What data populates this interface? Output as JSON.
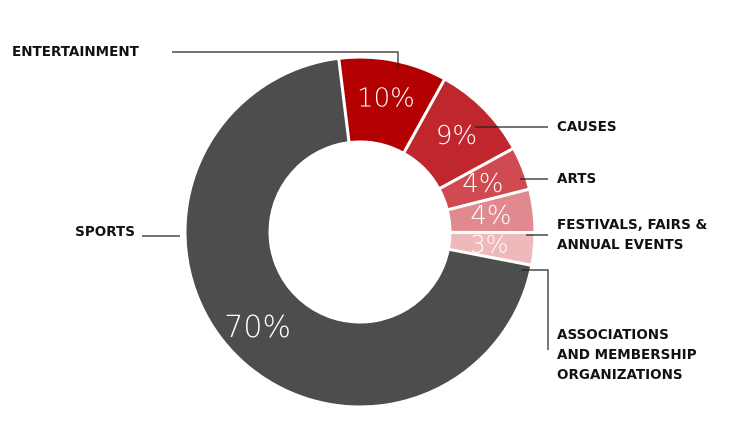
{
  "chart_data": {
    "type": "pie",
    "title": "",
    "donut": true,
    "legend": "none",
    "slices": [
      {
        "label": "ENTERTAINMENT",
        "lines": [
          "ENTERTAINMENT"
        ],
        "value": 10,
        "display": "10%",
        "color": "#b30000"
      },
      {
        "label": "CAUSES",
        "lines": [
          "CAUSES"
        ],
        "value": 9,
        "display": "9%",
        "color": "#c0272d"
      },
      {
        "label": "ARTS",
        "lines": [
          "ARTS"
        ],
        "value": 4,
        "display": "4%",
        "color": "#d14a52"
      },
      {
        "label": "FESTIVALS, FAIRS & ANNUAL EVENTS",
        "lines": [
          "FESTIVALS, FAIRS &",
          "ANNUAL EVENTS"
        ],
        "value": 4,
        "display": "4%",
        "color": "#e08a8f"
      },
      {
        "label": "ASSOCIATIONS AND MEMBERSHIP ORGANIZATIONS",
        "lines": [
          "ASSOCIATIONS",
          "AND MEMBERSHIP",
          "ORGANIZATIONS"
        ],
        "value": 3,
        "display": "3%",
        "color": "#efb8bb"
      },
      {
        "label": "SPORTS",
        "lines": [
          "SPORTS"
        ],
        "value": 70,
        "display": "70%",
        "color": "#4d4d4d"
      }
    ]
  }
}
